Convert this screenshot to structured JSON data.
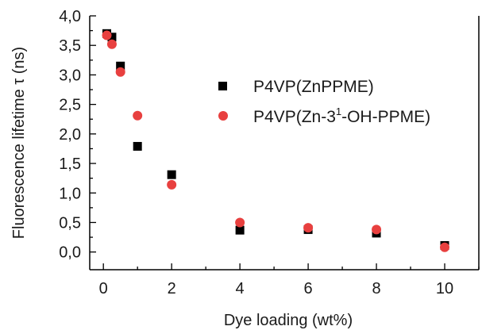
{
  "chart_data": {
    "type": "scatter",
    "xlabel": "Dye loading (wt%)",
    "ylabel": "Fluorescence lifetime τ (ns)",
    "xlim": [
      -0.4,
      11
    ],
    "ylim": [
      -0.3,
      4.0
    ],
    "xticks": [
      0,
      2,
      4,
      6,
      8,
      10
    ],
    "xtick_labels": [
      "0",
      "2",
      "4",
      "6",
      "8",
      "10"
    ],
    "yticks": [
      0.0,
      0.5,
      1.0,
      1.5,
      2.0,
      2.5,
      3.0,
      3.5,
      4.0
    ],
    "ytick_labels": [
      "0,0",
      "0,5",
      "1,0",
      "1,5",
      "2,0",
      "2,5",
      "3,0",
      "3,5",
      "4,0"
    ],
    "grid": false,
    "legend_position": "upper-right",
    "series": [
      {
        "name": "P4VP(ZnPPME)",
        "marker": "square",
        "color": "#000000",
        "x": [
          0.1,
          0.25,
          0.5,
          1,
          2,
          4,
          6,
          8,
          10
        ],
        "y": [
          3.7,
          3.64,
          3.15,
          1.79,
          1.31,
          0.37,
          0.38,
          0.32,
          0.11
        ]
      },
      {
        "name": "P4VP(Zn-3¹-OH-PPME)",
        "legend_parts": [
          "P4VP(Zn-3",
          "1",
          "-OH-PPME)"
        ],
        "marker": "circle",
        "color": "#e8403f",
        "x": [
          0.1,
          0.25,
          0.5,
          1,
          2,
          4,
          6,
          8,
          10
        ],
        "y": [
          3.67,
          3.52,
          3.05,
          2.31,
          1.14,
          0.5,
          0.41,
          0.38,
          0.08
        ]
      }
    ]
  }
}
